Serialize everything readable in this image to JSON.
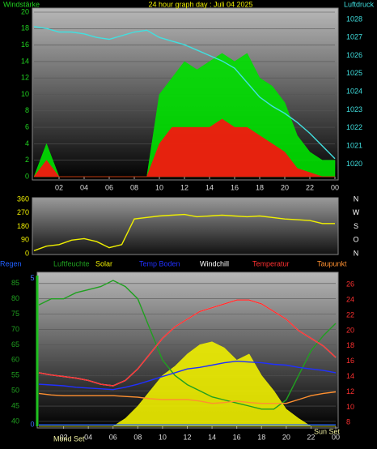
{
  "chart_data": [
    {
      "type": "line",
      "title": "24 hour graph day : Juli 04 2025",
      "ylabel": "Windstärke",
      "y2label": "Luftdruck",
      "x": [
        0,
        1,
        2,
        3,
        4,
        5,
        6,
        7,
        8,
        9,
        10,
        11,
        12,
        13,
        14,
        15,
        16,
        17,
        18,
        19,
        20,
        21,
        22,
        23,
        24
      ],
      "xlim": [
        0,
        24
      ],
      "xticks": [
        {
          "value": 2,
          "label": "02"
        },
        {
          "value": 4,
          "label": "04"
        },
        {
          "value": 6,
          "label": "06"
        },
        {
          "value": 8,
          "label": "08"
        },
        10,
        12,
        14,
        16,
        18,
        20,
        22,
        {
          "value": 24,
          "label": "00"
        }
      ],
      "ylim": [
        0,
        20
      ],
      "yticks": [
        0,
        2,
        4,
        6,
        8,
        10,
        12,
        14,
        16,
        18,
        20
      ],
      "y2lim": [
        1019.3,
        1028.4
      ],
      "y2ticks": [
        1020,
        1021,
        1022,
        1023,
        1024,
        1025,
        1026,
        1027,
        1028
      ],
      "grid": true,
      "series": [
        {
          "color": "#00e000",
          "fill": true,
          "axis": "y",
          "values": [
            0,
            4,
            0,
            0,
            0,
            0,
            0,
            0,
            0,
            0,
            10,
            12,
            14,
            13,
            14,
            15,
            14,
            15,
            12,
            11,
            9,
            5,
            3,
            2,
            2
          ]
        },
        {
          "color": "#ff1010",
          "fill": true,
          "axis": "y",
          "values": [
            0,
            2,
            0,
            0,
            0,
            0,
            0,
            0,
            0,
            0,
            4,
            6,
            6,
            6,
            6,
            7,
            6,
            6,
            5,
            4,
            3,
            1,
            0.5,
            0,
            0
          ]
        },
        {
          "color": "#40e0e0",
          "fill": false,
          "axis": "y2",
          "values": [
            1027.6,
            1027.5,
            1027.3,
            1027.3,
            1027.2,
            1027.0,
            1026.9,
            1027.1,
            1027.3,
            1027.4,
            1027.0,
            1026.8,
            1026.6,
            1026.3,
            1026.0,
            1025.7,
            1025.3,
            1024.5,
            1023.7,
            1023.2,
            1022.8,
            1022.3,
            1021.7,
            1021.0,
            1020.3
          ]
        }
      ]
    },
    {
      "type": "line",
      "compass": [
        "N",
        "W",
        "S",
        "O",
        "N"
      ],
      "x": [
        0,
        1,
        2,
        3,
        4,
        5,
        6,
        7,
        8,
        9,
        10,
        11,
        12,
        13,
        14,
        15,
        16,
        17,
        18,
        19,
        20,
        21,
        22,
        23,
        24
      ],
      "xlim": [
        0,
        24
      ],
      "ylim": [
        0,
        360
      ],
      "yticks": [
        0,
        90,
        180,
        270,
        360
      ],
      "grid": false,
      "series": [
        {
          "color": "#f0f000",
          "fill": false,
          "axis": "y",
          "values": [
            20,
            50,
            60,
            90,
            100,
            80,
            40,
            60,
            230,
            240,
            250,
            255,
            260,
            245,
            250,
            255,
            250,
            245,
            250,
            240,
            230,
            225,
            220,
            200,
            200
          ]
        }
      ]
    },
    {
      "type": "line",
      "annotations": [
        "Mond Set",
        "Sun Set"
      ],
      "x": [
        0,
        1,
        2,
        3,
        4,
        5,
        6,
        7,
        8,
        9,
        10,
        11,
        12,
        13,
        14,
        15,
        16,
        17,
        18,
        19,
        20,
        21,
        22,
        23,
        24
      ],
      "xlim": [
        0,
        24
      ],
      "xticks": [
        {
          "value": 2,
          "label": "02"
        },
        {
          "value": 4,
          "label": "04"
        },
        {
          "value": 6,
          "label": "06"
        },
        {
          "value": 8,
          "label": "08"
        },
        10,
        12,
        14,
        16,
        18,
        20,
        22,
        {
          "value": 24,
          "label": "00"
        }
      ],
      "ylim": [
        38.4,
        87.6
      ],
      "yticks": [
        40,
        45,
        50,
        55,
        60,
        65,
        70,
        75,
        80,
        85
      ],
      "y2lim": [
        7.5,
        27.2
      ],
      "y2ticks": [
        8,
        10,
        12,
        14,
        16,
        18,
        20,
        22,
        24,
        26
      ],
      "y3lim": [
        -0.05,
        5.1
      ],
      "y3ticks": [
        0,
        5
      ],
      "grid": true,
      "series": [
        {
          "name": "Regen",
          "color": "#2060ff",
          "fill": false,
          "axis": "y3",
          "values": [
            0,
            0,
            0,
            0,
            0,
            0,
            0,
            0,
            0,
            0,
            0,
            0,
            0,
            0,
            0,
            0,
            0,
            0,
            0,
            0,
            0,
            0,
            0,
            0,
            0
          ]
        },
        {
          "name": "Luftfeuchte",
          "color": "#20a020",
          "fill": false,
          "axis": "y",
          "values": [
            78,
            80,
            80,
            82,
            83,
            84,
            86,
            84,
            80,
            70,
            60,
            55,
            52,
            50,
            48,
            47,
            46,
            45,
            44,
            44,
            47,
            55,
            63,
            68,
            72
          ]
        },
        {
          "name": "Solar",
          "color": "#f0f000",
          "fill": true,
          "axis": "y",
          "values": [
            38.4,
            38.4,
            38.4,
            38.4,
            38.4,
            38.4,
            38.4,
            41,
            45,
            50,
            55,
            58,
            62,
            65,
            66,
            64,
            60,
            62,
            55,
            50,
            44,
            41,
            38.4,
            38.4,
            38.4
          ]
        },
        {
          "name": "Temp Boden",
          "color": "#2030ff",
          "fill": false,
          "axis": "y2",
          "values": [
            13,
            12.9,
            12.8,
            12.6,
            12.5,
            12.4,
            12.3,
            12.6,
            13,
            13.5,
            14,
            14.5,
            15,
            15.2,
            15.5,
            15.8,
            16,
            15.9,
            15.8,
            15.6,
            15.5,
            15.2,
            15,
            14.8,
            14.5
          ]
        },
        {
          "name": "Windchill",
          "color": "#ffffff",
          "fill": false,
          "axis": "y2",
          "values": [
            14.5,
            14.2,
            14,
            13.8,
            13.5,
            13,
            12.8,
            13.5,
            15,
            17,
            19,
            20.5,
            21.5,
            22.5,
            23,
            23.5,
            24,
            24,
            23.5,
            22.5,
            21.5,
            20,
            19,
            18,
            16.5
          ]
        },
        {
          "name": "Temperatur",
          "color": "#ff3030",
          "fill": false,
          "axis": "y2",
          "values": [
            14.5,
            14.2,
            14,
            13.8,
            13.5,
            13,
            12.8,
            13.5,
            15,
            17,
            19,
            20.5,
            21.5,
            22.5,
            23,
            23.5,
            24,
            24,
            23.5,
            22.5,
            21.5,
            20,
            19,
            18,
            16.5
          ]
        },
        {
          "name": "Taupunkt",
          "color": "#ff9030",
          "fill": false,
          "axis": "y2",
          "values": [
            11.8,
            11.6,
            11.5,
            11.5,
            11.5,
            11.5,
            11.5,
            11.4,
            11.3,
            11.1,
            11,
            11,
            11,
            10.8,
            10.5,
            10.6,
            10.8,
            10.6,
            10.5,
            10.5,
            10.5,
            11,
            11.5,
            11.8,
            12
          ]
        }
      ]
    }
  ]
}
